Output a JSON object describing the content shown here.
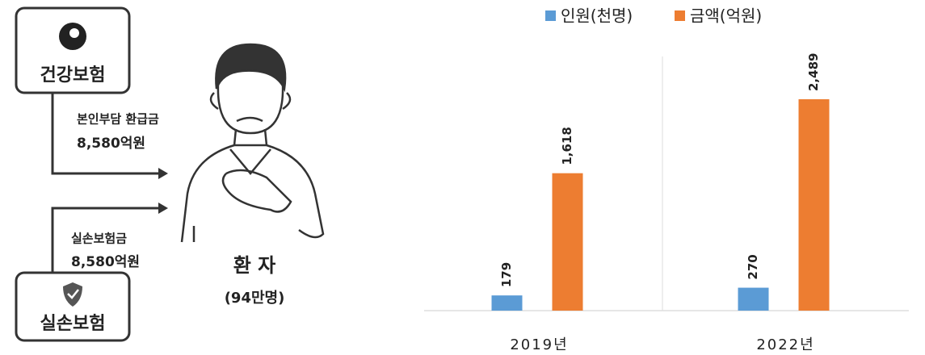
{
  "diagram": {
    "insurer_top": "건강보험",
    "flow_top_label": "본인부담 환급금",
    "flow_top_amount": "8,580억원",
    "insurer_bottom": "실손보험",
    "flow_bottom_label": "실손보험금",
    "flow_bottom_amount": "8,580억원",
    "patient": "환 자",
    "patient_count": "(94만명)"
  },
  "chart_data": {
    "type": "bar",
    "categories": [
      "2019년",
      "2022년"
    ],
    "series": [
      {
        "name": "인원(천명)",
        "color": "#5b9bd5",
        "values": [
          179,
          270
        ]
      },
      {
        "name": "금액(억원)",
        "color": "#ed7d31",
        "values": [
          1618,
          2489
        ],
        "value_labels": [
          "1,618",
          "2,489"
        ]
      }
    ],
    "legend": "top"
  }
}
